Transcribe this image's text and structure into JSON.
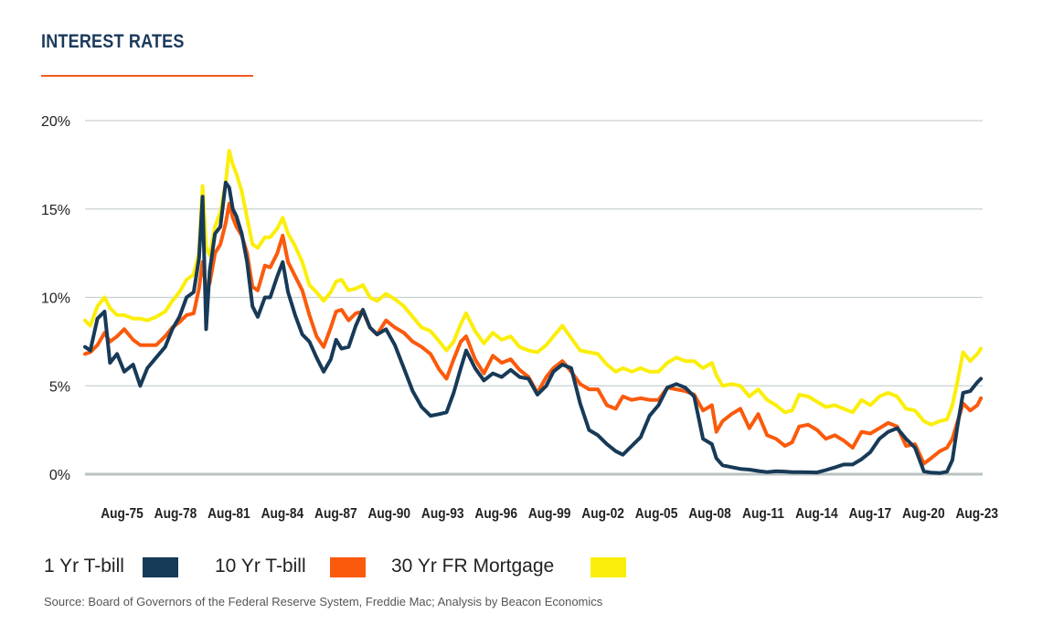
{
  "title": "INTEREST RATES",
  "source": "Source: Board of Governors of the Federal Reserve System, Freddie Mac; Analysis by Beacon Economics",
  "colors": {
    "title": "#1b3a5c",
    "accent": "#f05a22",
    "grid": "#c9d0d0",
    "baseline": "#b9c2c2"
  },
  "legend": [
    {
      "label": "1 Yr T-bill",
      "color": "#173a57"
    },
    {
      "label": "10 Yr T-bill",
      "color": "#fb5a0c"
    },
    {
      "label": "30 Yr FR Mortgage",
      "color": "#fbee0a"
    }
  ],
  "chart_data": {
    "type": "line",
    "title": "INTEREST RATES",
    "xlabel": "",
    "ylabel": "",
    "ylim": [
      0,
      20
    ],
    "yticks": [
      0,
      5,
      10,
      15,
      20
    ],
    "ytick_labels": [
      "0%",
      "5%",
      "10%",
      "15%",
      "20%"
    ],
    "xlim": [
      1973.5,
      2023.9
    ],
    "xticks": [
      1975.58,
      1978.58,
      1981.58,
      1984.58,
      1987.58,
      1990.58,
      1993.58,
      1996.58,
      1999.58,
      2002.58,
      2005.58,
      2008.58,
      2011.58,
      2014.58,
      2017.58,
      2020.58,
      2023.58
    ],
    "xtick_labels": [
      "Aug-75",
      "Aug-78",
      "Aug-81",
      "Aug-84",
      "Aug-87",
      "Aug-90",
      "Aug-93",
      "Aug-96",
      "Aug-99",
      "Aug-02",
      "Aug-05",
      "Aug-08",
      "Aug-11",
      "Aug-14",
      "Aug-17",
      "Aug-20",
      "Aug-23"
    ],
    "grid": true,
    "legend_position": "bottom",
    "series": [
      {
        "name": "30 Yr FR Mortgage",
        "color": "#fbee0a",
        "x": [
          1973.5,
          1973.8,
          1974.2,
          1974.6,
          1974.9,
          1975.3,
          1975.7,
          1976.2,
          1976.6,
          1977.0,
          1977.5,
          1978.0,
          1978.4,
          1978.8,
          1979.2,
          1979.6,
          1979.9,
          1980.1,
          1980.3,
          1980.5,
          1980.8,
          1981.1,
          1981.4,
          1981.6,
          1981.8,
          1982.0,
          1982.3,
          1982.6,
          1982.9,
          1983.2,
          1983.6,
          1983.9,
          1984.3,
          1984.6,
          1984.9,
          1985.3,
          1985.7,
          1986.1,
          1986.5,
          1986.9,
          1987.3,
          1987.6,
          1987.9,
          1988.3,
          1988.7,
          1989.1,
          1989.5,
          1989.9,
          1990.4,
          1990.9,
          1991.4,
          1991.9,
          1992.4,
          1992.9,
          1993.4,
          1993.8,
          1994.2,
          1994.6,
          1994.9,
          1995.4,
          1995.9,
          1996.4,
          1996.9,
          1997.4,
          1997.9,
          1998.4,
          1998.9,
          1999.4,
          1999.8,
          2000.3,
          2000.8,
          2001.3,
          2001.8,
          2002.3,
          2002.8,
          2003.3,
          2003.7,
          2004.2,
          2004.7,
          2005.2,
          2005.7,
          2006.2,
          2006.7,
          2007.2,
          2007.7,
          2008.2,
          2008.7,
          2008.95,
          2009.3,
          2009.8,
          2010.3,
          2010.8,
          2011.3,
          2011.8,
          2012.3,
          2012.8,
          2013.2,
          2013.6,
          2014.1,
          2014.6,
          2015.1,
          2015.6,
          2016.1,
          2016.6,
          2017.1,
          2017.6,
          2018.1,
          2018.6,
          2019.1,
          2019.6,
          2020.1,
          2020.6,
          2021.0,
          2021.5,
          2021.9,
          2022.2,
          2022.5,
          2022.8,
          2023.2,
          2023.6,
          2023.8
        ],
        "y": [
          8.7,
          8.4,
          9.5,
          10.0,
          9.4,
          9.0,
          9.0,
          8.8,
          8.8,
          8.7,
          8.9,
          9.2,
          9.8,
          10.3,
          11.0,
          11.3,
          12.5,
          16.3,
          12.8,
          12.4,
          14.0,
          14.8,
          16.5,
          18.3,
          17.5,
          17.0,
          16.0,
          14.5,
          13.0,
          12.8,
          13.4,
          13.4,
          13.9,
          14.5,
          13.6,
          12.9,
          12.0,
          10.7,
          10.3,
          9.8,
          10.3,
          10.9,
          11.0,
          10.4,
          10.5,
          10.7,
          10.0,
          9.8,
          10.2,
          9.9,
          9.5,
          8.9,
          8.3,
          8.1,
          7.5,
          7.0,
          7.5,
          8.5,
          9.1,
          8.1,
          7.4,
          8.0,
          7.6,
          7.8,
          7.2,
          7.0,
          6.9,
          7.3,
          7.8,
          8.4,
          7.7,
          7.0,
          6.9,
          6.8,
          6.2,
          5.8,
          6.0,
          5.8,
          6.0,
          5.8,
          5.8,
          6.3,
          6.6,
          6.4,
          6.4,
          6.0,
          6.3,
          5.6,
          5.0,
          5.1,
          5.0,
          4.4,
          4.8,
          4.2,
          3.9,
          3.5,
          3.6,
          4.5,
          4.4,
          4.1,
          3.8,
          3.9,
          3.7,
          3.5,
          4.2,
          3.9,
          4.4,
          4.6,
          4.4,
          3.7,
          3.6,
          3.0,
          2.8,
          3.0,
          3.1,
          3.9,
          5.3,
          6.9,
          6.4,
          6.8,
          7.1
        ]
      },
      {
        "name": "10 Yr T-bill",
        "color": "#fb5a0c",
        "x": [
          1973.5,
          1973.8,
          1974.2,
          1974.6,
          1974.9,
          1975.3,
          1975.7,
          1976.2,
          1976.6,
          1977.0,
          1977.5,
          1978.0,
          1978.4,
          1978.8,
          1979.2,
          1979.6,
          1979.9,
          1980.1,
          1980.3,
          1980.5,
          1980.8,
          1981.1,
          1981.4,
          1981.6,
          1981.8,
          1982.0,
          1982.3,
          1982.6,
          1982.9,
          1983.2,
          1983.6,
          1983.9,
          1984.3,
          1984.6,
          1984.9,
          1985.3,
          1985.7,
          1986.1,
          1986.5,
          1986.9,
          1987.3,
          1987.6,
          1987.9,
          1988.3,
          1988.7,
          1989.1,
          1989.5,
          1989.9,
          1990.4,
          1990.9,
          1991.4,
          1991.9,
          1992.4,
          1992.9,
          1993.4,
          1993.8,
          1994.2,
          1994.6,
          1994.9,
          1995.4,
          1995.9,
          1996.4,
          1996.9,
          1997.4,
          1997.9,
          1998.4,
          1998.9,
          1999.4,
          1999.8,
          2000.3,
          2000.8,
          2001.3,
          2001.8,
          2002.3,
          2002.8,
          2003.3,
          2003.7,
          2004.2,
          2004.7,
          2005.2,
          2005.7,
          2006.2,
          2006.7,
          2007.2,
          2007.7,
          2008.2,
          2008.7,
          2008.95,
          2009.3,
          2009.8,
          2010.3,
          2010.8,
          2011.3,
          2011.8,
          2012.3,
          2012.8,
          2013.2,
          2013.6,
          2014.1,
          2014.6,
          2015.1,
          2015.6,
          2016.1,
          2016.6,
          2017.1,
          2017.6,
          2018.1,
          2018.6,
          2019.1,
          2019.6,
          2020.1,
          2020.6,
          2021.0,
          2021.5,
          2021.9,
          2022.2,
          2022.5,
          2022.8,
          2023.2,
          2023.6,
          2023.8
        ],
        "y": [
          6.8,
          6.9,
          7.3,
          8.0,
          7.5,
          7.8,
          8.2,
          7.6,
          7.3,
          7.3,
          7.3,
          7.8,
          8.3,
          8.6,
          9.0,
          9.1,
          10.5,
          12.0,
          10.5,
          10.8,
          12.5,
          13.0,
          14.2,
          15.3,
          14.5,
          14.0,
          13.5,
          12.5,
          10.6,
          10.4,
          11.8,
          11.7,
          12.5,
          13.5,
          12.0,
          11.2,
          10.4,
          9.0,
          7.8,
          7.2,
          8.3,
          9.2,
          9.3,
          8.7,
          9.1,
          9.2,
          8.3,
          7.9,
          8.7,
          8.3,
          8.0,
          7.5,
          7.2,
          6.8,
          5.9,
          5.4,
          6.5,
          7.5,
          7.8,
          6.5,
          5.7,
          6.7,
          6.3,
          6.5,
          5.9,
          5.5,
          4.6,
          5.5,
          6.0,
          6.4,
          5.8,
          5.1,
          4.8,
          4.8,
          3.9,
          3.7,
          4.4,
          4.2,
          4.3,
          4.2,
          4.2,
          4.9,
          4.8,
          4.7,
          4.5,
          3.6,
          3.9,
          2.4,
          3.0,
          3.4,
          3.7,
          2.6,
          3.4,
          2.2,
          2.0,
          1.6,
          1.8,
          2.7,
          2.8,
          2.5,
          2.0,
          2.2,
          1.9,
          1.5,
          2.4,
          2.3,
          2.6,
          2.9,
          2.7,
          1.6,
          1.7,
          0.6,
          0.9,
          1.3,
          1.5,
          2.0,
          3.0,
          4.0,
          3.6,
          3.9,
          4.3
        ]
      },
      {
        "name": "1 Yr T-bill",
        "color": "#173a57",
        "x": [
          1973.5,
          1973.8,
          1974.2,
          1974.6,
          1974.9,
          1975.3,
          1975.7,
          1976.2,
          1976.6,
          1977.0,
          1977.5,
          1978.0,
          1978.4,
          1978.8,
          1979.2,
          1979.6,
          1979.9,
          1980.1,
          1980.3,
          1980.5,
          1980.8,
          1981.1,
          1981.4,
          1981.6,
          1981.8,
          1982.0,
          1982.3,
          1982.6,
          1982.9,
          1983.2,
          1983.6,
          1983.9,
          1984.3,
          1984.6,
          1984.9,
          1985.3,
          1985.7,
          1986.1,
          1986.5,
          1986.9,
          1987.3,
          1987.6,
          1987.9,
          1988.3,
          1988.7,
          1989.1,
          1989.5,
          1989.9,
          1990.4,
          1990.9,
          1991.4,
          1991.9,
          1992.4,
          1992.9,
          1993.4,
          1993.8,
          1994.2,
          1994.6,
          1994.9,
          1995.4,
          1995.9,
          1996.4,
          1996.9,
          1997.4,
          1997.9,
          1998.4,
          1998.9,
          1999.4,
          1999.8,
          2000.3,
          2000.8,
          2001.3,
          2001.8,
          2002.3,
          2002.8,
          2003.3,
          2003.7,
          2004.2,
          2004.7,
          2005.2,
          2005.7,
          2006.2,
          2006.7,
          2007.2,
          2007.7,
          2008.2,
          2008.7,
          2008.95,
          2009.3,
          2009.8,
          2010.3,
          2010.8,
          2011.3,
          2011.8,
          2012.3,
          2012.8,
          2013.2,
          2013.6,
          2014.1,
          2014.6,
          2015.1,
          2015.6,
          2016.1,
          2016.6,
          2017.1,
          2017.6,
          2018.1,
          2018.6,
          2019.1,
          2019.6,
          2020.1,
          2020.6,
          2021.0,
          2021.5,
          2021.9,
          2022.2,
          2022.5,
          2022.8,
          2023.2,
          2023.6,
          2023.8
        ],
        "y": [
          7.2,
          7.0,
          8.8,
          9.2,
          6.3,
          6.8,
          5.8,
          6.2,
          5.0,
          6.0,
          6.6,
          7.2,
          8.2,
          8.9,
          10.0,
          10.3,
          12.2,
          15.7,
          8.2,
          11.5,
          13.6,
          14.0,
          16.5,
          16.2,
          15.0,
          14.6,
          13.6,
          12.0,
          9.5,
          8.9,
          10.0,
          10.0,
          11.2,
          12.0,
          10.3,
          9.0,
          7.9,
          7.5,
          6.6,
          5.8,
          6.5,
          7.6,
          7.1,
          7.2,
          8.4,
          9.3,
          8.3,
          7.9,
          8.2,
          7.3,
          6.0,
          4.7,
          3.8,
          3.3,
          3.4,
          3.5,
          4.6,
          6.0,
          7.0,
          6.0,
          5.3,
          5.7,
          5.5,
          5.9,
          5.5,
          5.4,
          4.5,
          5.0,
          5.8,
          6.2,
          6.0,
          4.0,
          2.5,
          2.2,
          1.7,
          1.3,
          1.1,
          1.6,
          2.1,
          3.3,
          3.9,
          4.9,
          5.1,
          4.9,
          4.4,
          2.0,
          1.7,
          0.9,
          0.5,
          0.4,
          0.3,
          0.26,
          0.18,
          0.12,
          0.17,
          0.15,
          0.12,
          0.12,
          0.11,
          0.1,
          0.23,
          0.38,
          0.55,
          0.55,
          0.85,
          1.25,
          2.0,
          2.4,
          2.6,
          2.0,
          1.5,
          0.16,
          0.09,
          0.06,
          0.14,
          0.8,
          2.8,
          4.6,
          4.7,
          5.2,
          5.4
        ]
      }
    ]
  }
}
